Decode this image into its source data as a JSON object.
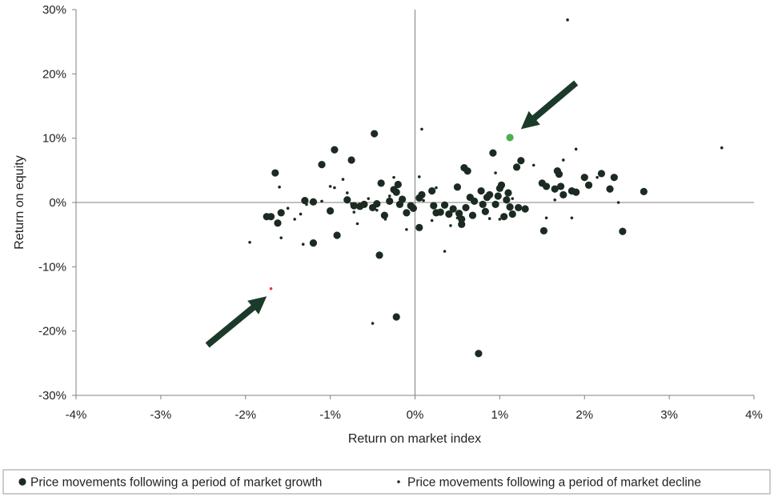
{
  "chart_data": {
    "type": "scatter",
    "title": "",
    "xlabel": "Return on market index",
    "ylabel": "Return on equity",
    "xlim": [
      -4,
      4
    ],
    "ylim": [
      -30,
      30
    ],
    "x_ticks": [
      -4,
      -3,
      -2,
      -1,
      0,
      1,
      2,
      3,
      4
    ],
    "y_ticks": [
      -30,
      -20,
      -10,
      0,
      10,
      20,
      30
    ],
    "x_tick_labels": [
      "-4%",
      "-3%",
      "-2%",
      "-1%",
      "0%",
      "1%",
      "2%",
      "3%",
      "4%"
    ],
    "y_tick_labels": [
      "-30%",
      "-20%",
      "-10%",
      "0%",
      "10%",
      "20%",
      "30%"
    ],
    "grid": false,
    "legend_position": "bottom",
    "series": [
      {
        "name": "Price movements following a period of market growth",
        "marker": "large-dot",
        "color": "#1c2b22",
        "points": [
          [
            -1.75,
            -2.2
          ],
          [
            -1.7,
            -2.2
          ],
          [
            -1.65,
            4.6
          ],
          [
            -1.62,
            -3.2
          ],
          [
            -1.58,
            -1.6
          ],
          [
            -1.3,
            0.3
          ],
          [
            -1.2,
            0.1
          ],
          [
            -1.2,
            -6.3
          ],
          [
            -1.1,
            5.9
          ],
          [
            -1.0,
            -1.3
          ],
          [
            -0.95,
            8.2
          ],
          [
            -0.92,
            -5.1
          ],
          [
            -0.8,
            0.4
          ],
          [
            -0.75,
            6.6
          ],
          [
            -0.72,
            -0.5
          ],
          [
            -0.65,
            -0.6
          ],
          [
            -0.6,
            -0.3
          ],
          [
            -0.5,
            -0.8
          ],
          [
            -0.48,
            10.7
          ],
          [
            -0.45,
            -0.2
          ],
          [
            -0.42,
            -8.2
          ],
          [
            -0.4,
            3.0
          ],
          [
            -0.36,
            -2.0
          ],
          [
            -0.3,
            0.2
          ],
          [
            -0.25,
            2.0
          ],
          [
            -0.22,
            1.6
          ],
          [
            -0.2,
            2.8
          ],
          [
            -0.18,
            -0.3
          ],
          [
            -0.15,
            0.5
          ],
          [
            -0.1,
            -1.6
          ],
          [
            -0.05,
            -0.5
          ],
          [
            -0.02,
            -0.9
          ],
          [
            0.05,
            0.7
          ],
          [
            0.08,
            1.2
          ],
          [
            -0.22,
            -17.8
          ],
          [
            0.05,
            -3.9
          ],
          [
            0.2,
            1.8
          ],
          [
            0.22,
            -0.5
          ],
          [
            0.25,
            -1.6
          ],
          [
            0.3,
            -1.5
          ],
          [
            0.35,
            -0.4
          ],
          [
            0.4,
            -1.8
          ],
          [
            0.45,
            -1.0
          ],
          [
            0.5,
            2.4
          ],
          [
            0.52,
            -1.7
          ],
          [
            0.55,
            -3.4
          ],
          [
            0.55,
            -2.6
          ],
          [
            0.58,
            5.4
          ],
          [
            0.6,
            -0.8
          ],
          [
            0.62,
            4.9
          ],
          [
            0.65,
            0.8
          ],
          [
            0.68,
            -2.0
          ],
          [
            0.7,
            0.2
          ],
          [
            0.75,
            -23.5
          ],
          [
            0.78,
            1.8
          ],
          [
            0.8,
            -0.3
          ],
          [
            0.83,
            -1.4
          ],
          [
            0.85,
            0.8
          ],
          [
            0.88,
            1.2
          ],
          [
            0.92,
            7.7
          ],
          [
            0.95,
            -0.3
          ],
          [
            0.98,
            1.0
          ],
          [
            1.0,
            2.2
          ],
          [
            1.02,
            2.7
          ],
          [
            1.05,
            -2.2
          ],
          [
            1.08,
            0.4
          ],
          [
            1.1,
            1.5
          ],
          [
            1.12,
            -0.7
          ],
          [
            1.15,
            -1.8
          ],
          [
            1.2,
            5.5
          ],
          [
            1.22,
            -0.8
          ],
          [
            1.25,
            6.5
          ],
          [
            1.3,
            -1.0
          ],
          [
            1.5,
            3.0
          ],
          [
            1.52,
            -4.4
          ],
          [
            1.55,
            2.5
          ],
          [
            1.65,
            2.1
          ],
          [
            1.68,
            4.9
          ],
          [
            1.7,
            4.4
          ],
          [
            1.72,
            2.5
          ],
          [
            1.75,
            1.2
          ],
          [
            1.85,
            1.8
          ],
          [
            1.9,
            1.6
          ],
          [
            2.0,
            3.9
          ],
          [
            2.05,
            2.7
          ],
          [
            2.2,
            4.5
          ],
          [
            2.3,
            2.1
          ],
          [
            2.35,
            3.9
          ],
          [
            2.45,
            -4.5
          ],
          [
            2.7,
            1.7
          ]
        ]
      },
      {
        "name": "Price movements following a period of market decline",
        "marker": "small-dot",
        "color": "#1c2b22",
        "points": [
          [
            -1.95,
            -6.2
          ],
          [
            -1.6,
            2.4
          ],
          [
            -1.58,
            -5.5
          ],
          [
            -1.5,
            -0.9
          ],
          [
            -1.42,
            -2.6
          ],
          [
            -1.35,
            -1.8
          ],
          [
            -1.32,
            -6.5
          ],
          [
            -1.28,
            -0.3
          ],
          [
            -1.1,
            0.2
          ],
          [
            -1.0,
            2.5
          ],
          [
            -0.95,
            2.3
          ],
          [
            -0.85,
            3.6
          ],
          [
            -0.8,
            1.5
          ],
          [
            -0.75,
            -0.2
          ],
          [
            -0.72,
            -1.5
          ],
          [
            -0.68,
            -3.3
          ],
          [
            -0.55,
            0.6
          ],
          [
            -0.5,
            -18.8
          ],
          [
            -0.45,
            -1.2
          ],
          [
            -0.35,
            -2.6
          ],
          [
            -0.3,
            1.0
          ],
          [
            -0.25,
            3.9
          ],
          [
            -0.1,
            -4.2
          ],
          [
            0.05,
            4.0
          ],
          [
            0.08,
            11.4
          ],
          [
            0.1,
            0.3
          ],
          [
            0.2,
            -2.8
          ],
          [
            0.25,
            2.3
          ],
          [
            0.35,
            -7.6
          ],
          [
            0.42,
            -3.6
          ],
          [
            0.5,
            -2.4
          ],
          [
            0.88,
            -2.5
          ],
          [
            0.95,
            4.6
          ],
          [
            1.0,
            -2.6
          ],
          [
            1.15,
            0.6
          ],
          [
            1.4,
            5.8
          ],
          [
            1.55,
            -2.4
          ],
          [
            1.65,
            0.4
          ],
          [
            1.75,
            6.6
          ],
          [
            1.8,
            28.4
          ],
          [
            1.85,
            -2.4
          ],
          [
            1.9,
            8.3
          ],
          [
            2.15,
            3.9
          ],
          [
            2.4,
            0.0
          ],
          [
            3.62,
            8.5
          ]
        ]
      }
    ],
    "highlights": [
      {
        "x": 1.12,
        "y": 10.1,
        "color": "#4caf50",
        "marker": "large-dot"
      },
      {
        "x": -1.7,
        "y": -13.4,
        "color": "#e53935",
        "marker": "small-dot"
      }
    ],
    "annotations": [
      {
        "type": "arrow",
        "from": [
          1.9,
          18.6
        ],
        "to": [
          1.25,
          11.4
        ],
        "color": "#1c3a2a"
      },
      {
        "type": "arrow",
        "from": [
          -2.45,
          -22.2
        ],
        "to": [
          -1.75,
          -14.6
        ],
        "color": "#1c3a2a"
      }
    ]
  }
}
